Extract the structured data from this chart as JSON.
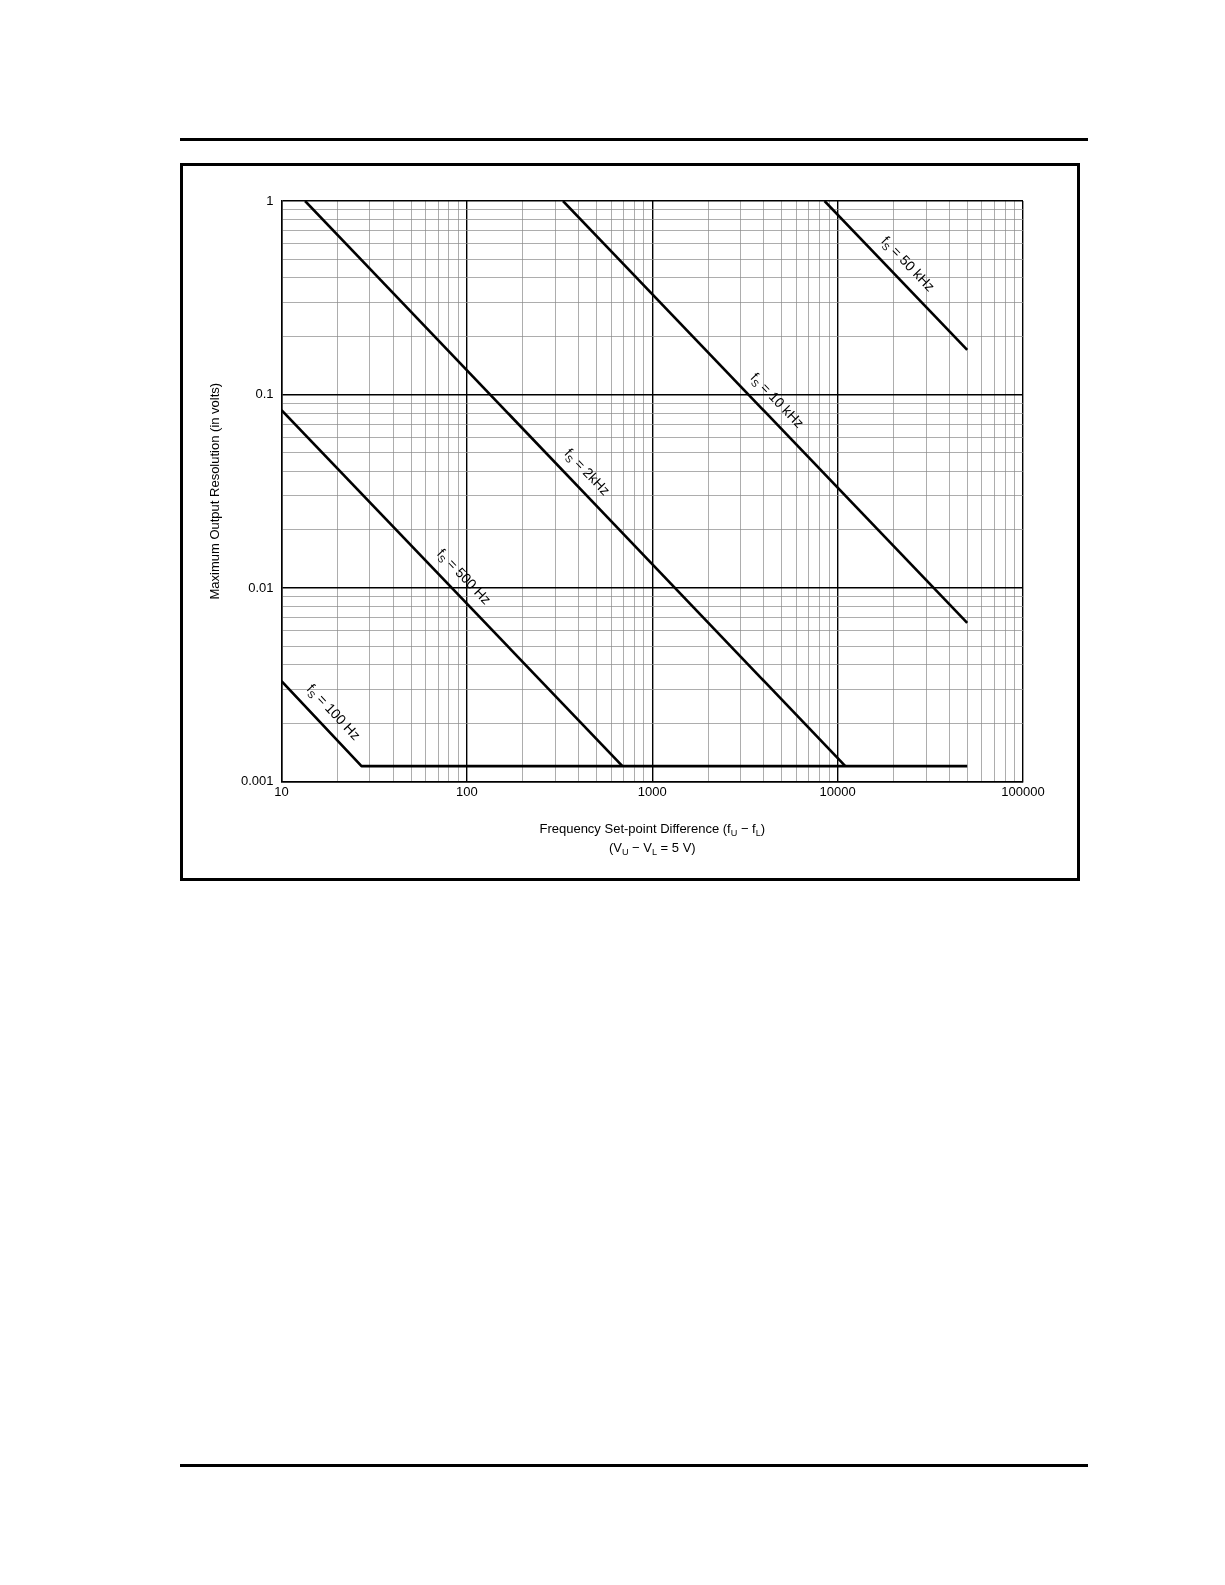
{
  "chart_data": {
    "type": "line",
    "xlabel": "Frequency Set-point Difference (f$_{U}$ − f$_{L}$)\n(V$_{U}$ − V$_{L}$ = 5 V)",
    "ylabel": "Maximum Output Resolution (in volts)",
    "log": "xy",
    "grid": true,
    "legend": false,
    "marker": "none",
    "line_style": "solid",
    "xlim": [
      10,
      100000
    ],
    "ylim": [
      0.001,
      1
    ],
    "xticks": [
      10,
      {
        "value": 20,
        "label": null
      },
      {
        "value": 30,
        "label": null
      },
      {
        "value": 40,
        "label": null
      },
      {
        "value": 50,
        "label": null
      },
      {
        "value": 60,
        "label": null
      },
      {
        "value": 70,
        "label": null
      },
      {
        "value": 80,
        "label": null
      },
      {
        "value": 90,
        "label": null
      },
      100,
      {
        "value": 200,
        "label": null
      },
      {
        "value": 300,
        "label": null
      },
      {
        "value": 400,
        "label": null
      },
      {
        "value": 500,
        "label": null
      },
      {
        "value": 600,
        "label": null
      },
      {
        "value": 700,
        "label": null
      },
      {
        "value": 800,
        "label": null
      },
      {
        "value": 900,
        "label": null
      },
      1000,
      {
        "value": 2000,
        "label": null
      },
      {
        "value": 3000,
        "label": null
      },
      {
        "value": 4000,
        "label": null
      },
      {
        "value": 5000,
        "label": null
      },
      {
        "value": 6000,
        "label": null
      },
      {
        "value": 7000,
        "label": null
      },
      {
        "value": 8000,
        "label": null
      },
      {
        "value": 9000,
        "label": null
      },
      10000,
      {
        "value": 20000,
        "label": null
      },
      {
        "value": 30000,
        "label": null
      },
      {
        "value": 40000,
        "label": null
      },
      {
        "value": 50000,
        "label": null
      },
      {
        "value": 60000,
        "label": null
      },
      {
        "value": 70000,
        "label": null
      },
      {
        "value": 80000,
        "label": null
      },
      {
        "value": 90000,
        "label": null
      },
      100000
    ],
    "yticks": [
      0.001,
      {
        "value": 0.002,
        "label": null
      },
      {
        "value": 0.003,
        "label": null
      },
      {
        "value": 0.004,
        "label": null
      },
      {
        "value": 0.005,
        "label": null
      },
      {
        "value": 0.006,
        "label": null
      },
      {
        "value": 0.007,
        "label": null
      },
      {
        "value": 0.008,
        "label": null
      },
      {
        "value": 0.009,
        "label": null
      },
      0.01,
      {
        "value": 0.02,
        "label": null
      },
      {
        "value": 0.03,
        "label": null
      },
      {
        "value": 0.04,
        "label": null
      },
      {
        "value": 0.05,
        "label": null
      },
      {
        "value": 0.06,
        "label": null
      },
      {
        "value": 0.07,
        "label": null
      },
      {
        "value": 0.08,
        "label": null
      },
      {
        "value": 0.09,
        "label": null
      },
      0.1,
      {
        "value": 0.2,
        "label": null
      },
      {
        "value": 0.3,
        "label": null
      },
      {
        "value": 0.4,
        "label": null
      },
      {
        "value": 0.5,
        "label": null
      },
      {
        "value": 0.6,
        "label": null
      },
      {
        "value": 0.7,
        "label": null
      },
      {
        "value": 0.8,
        "label": null
      },
      {
        "value": 0.9,
        "label": null
      },
      1
    ],
    "series": [
      {
        "name": "f$_{S}$ = 100 Hz",
        "color": "#000000",
        "x": [
          10,
          27,
          50000
        ],
        "values": [
          0.0033,
          0.0012,
          0.0012
        ]
      },
      {
        "name": "f$_{S}$ = 500 Hz",
        "color": "#000000",
        "x": [
          10,
          690
        ],
        "values": [
          0.083,
          0.0012
        ]
      },
      {
        "name": "f$_{S}$ = 2kHz",
        "color": "#000000",
        "x": [
          13.4,
          11000
        ],
        "values": [
          1,
          0.0012
        ]
      },
      {
        "name": "f$_{S}$ = 10 kHz",
        "color": "#000000",
        "x": [
          330,
          50000
        ],
        "values": [
          1,
          0.0066
        ]
      },
      {
        "name": "f$_{S}$ = 50 kHz",
        "color": "#000000",
        "x": [
          8500,
          50000
        ],
        "values": [
          1,
          0.17
        ]
      }
    ]
  }
}
